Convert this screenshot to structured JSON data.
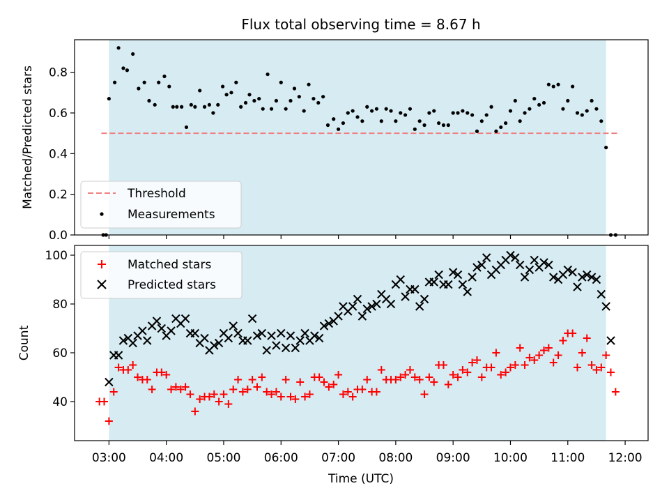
{
  "chart_data": [
    {
      "type": "scatter",
      "title": "Flux total observing time = 8.67 h",
      "xlabel": "",
      "ylabel": "Matched/Predicted stars",
      "xlim": [
        "02:24",
        "12:24"
      ],
      "ylim": [
        0,
        0.96
      ],
      "yticks": [
        0.0,
        0.2,
        0.4,
        0.6,
        0.8
      ],
      "ytick_labels": [
        "0.0",
        "0.2",
        "0.4",
        "0.6",
        "0.8"
      ],
      "observing_window": {
        "start": "03:00",
        "end": "11:40",
        "color": "#add8e6"
      },
      "threshold": {
        "name": "Threshold",
        "value": 0.5,
        "x_range": [
          "02:52",
          "11:52"
        ],
        "color": "#f08080",
        "style": "dashed"
      },
      "legend": {
        "placement": "lower-left",
        "entries": [
          "Threshold",
          "Measurements"
        ]
      },
      "series": [
        {
          "name": "Measurements",
          "marker": "dot",
          "color": "#000000",
          "x": [
            "02:54",
            "02:57",
            "03:00",
            "03:06",
            "03:10",
            "03:15",
            "03:19",
            "03:25",
            "03:31",
            "03:37",
            "03:42",
            "03:48",
            "03:52",
            "03:58",
            "04:03",
            "04:07",
            "04:11",
            "04:16",
            "04:21",
            "04:26",
            "04:30",
            "04:35",
            "04:40",
            "04:45",
            "04:49",
            "04:54",
            "04:59",
            "05:03",
            "05:08",
            "05:13",
            "05:18",
            "05:23",
            "05:27",
            "05:32",
            "05:37",
            "05:41",
            "05:46",
            "05:50",
            "05:55",
            "06:00",
            "06:05",
            "06:10",
            "06:14",
            "06:19",
            "06:24",
            "06:29",
            "06:34",
            "06:39",
            "06:44",
            "06:49",
            "06:55",
            "07:00",
            "07:05",
            "07:10",
            "07:15",
            "07:20",
            "07:25",
            "07:30",
            "07:35",
            "07:40",
            "07:45",
            "07:50",
            "07:55",
            "08:00",
            "08:05",
            "08:10",
            "08:15",
            "08:20",
            "08:25",
            "08:30",
            "08:35",
            "08:40",
            "08:45",
            "08:50",
            "08:55",
            "09:00",
            "09:05",
            "09:10",
            "09:15",
            "09:20",
            "09:25",
            "09:30",
            "09:35",
            "09:40",
            "09:45",
            "09:50",
            "09:55",
            "10:00",
            "10:05",
            "10:10",
            "10:15",
            "10:20",
            "10:25",
            "10:30",
            "10:35",
            "10:40",
            "10:45",
            "10:50",
            "10:55",
            "11:00",
            "11:05",
            "11:10",
            "11:15",
            "11:20",
            "11:25",
            "11:30",
            "11:35",
            "11:40",
            "11:45",
            "11:50"
          ],
          "y": [
            0.0,
            0.0,
            0.67,
            0.75,
            0.92,
            0.82,
            0.81,
            0.89,
            0.72,
            0.75,
            0.66,
            0.64,
            0.75,
            0.78,
            0.73,
            0.63,
            0.63,
            0.63,
            0.53,
            0.64,
            0.63,
            0.71,
            0.63,
            0.64,
            0.6,
            0.64,
            0.73,
            0.69,
            0.7,
            0.75,
            0.63,
            0.65,
            0.69,
            0.66,
            0.67,
            0.62,
            0.79,
            0.62,
            0.66,
            0.75,
            0.62,
            0.66,
            0.72,
            0.68,
            0.61,
            0.74,
            0.67,
            0.65,
            0.68,
            0.54,
            0.57,
            0.52,
            0.55,
            0.6,
            0.61,
            0.58,
            0.56,
            0.63,
            0.61,
            0.62,
            0.56,
            0.62,
            0.61,
            0.56,
            0.6,
            0.59,
            0.62,
            0.52,
            0.56,
            0.54,
            0.6,
            0.61,
            0.55,
            0.54,
            0.54,
            0.6,
            0.6,
            0.61,
            0.6,
            0.59,
            0.51,
            0.56,
            0.59,
            0.63,
            0.51,
            0.53,
            0.55,
            0.61,
            0.66,
            0.56,
            0.6,
            0.62,
            0.67,
            0.64,
            0.65,
            0.74,
            0.73,
            0.74,
            0.62,
            0.66,
            0.73,
            0.6,
            0.59,
            0.61,
            0.66,
            0.62,
            0.56,
            0.43,
            0.0,
            0.0
          ]
        }
      ]
    },
    {
      "type": "scatter",
      "title": "",
      "xlabel": "Time (UTC)",
      "ylabel": "Count",
      "xlim": [
        "02:24",
        "12:24"
      ],
      "ylim": [
        24,
        104
      ],
      "yticks": [
        40,
        60,
        80,
        100
      ],
      "ytick_labels": [
        "40",
        "60",
        "80",
        "100"
      ],
      "xticks": [
        "03:00",
        "04:00",
        "05:00",
        "06:00",
        "07:00",
        "08:00",
        "09:00",
        "10:00",
        "11:00",
        "12:00"
      ],
      "observing_window": {
        "start": "03:00",
        "end": "11:40",
        "color": "#add8e6"
      },
      "legend": {
        "placement": "upper-left",
        "entries": [
          "Matched stars",
          "Predicted stars"
        ]
      },
      "series": [
        {
          "name": "Matched stars",
          "marker": "plus",
          "color": "#ff0000",
          "x": [
            "02:50",
            "02:55",
            "03:00",
            "03:05",
            "03:10",
            "03:15",
            "03:20",
            "03:25",
            "03:30",
            "03:35",
            "03:40",
            "03:45",
            "03:50",
            "03:55",
            "04:00",
            "04:05",
            "04:10",
            "04:15",
            "04:20",
            "04:25",
            "04:30",
            "04:35",
            "04:40",
            "04:45",
            "04:50",
            "04:55",
            "05:00",
            "05:05",
            "05:10",
            "05:15",
            "05:20",
            "05:25",
            "05:30",
            "05:35",
            "05:40",
            "05:45",
            "05:50",
            "05:55",
            "06:00",
            "06:05",
            "06:10",
            "06:15",
            "06:20",
            "06:25",
            "06:30",
            "06:35",
            "06:40",
            "06:45",
            "06:50",
            "06:55",
            "07:00",
            "07:05",
            "07:10",
            "07:15",
            "07:20",
            "07:25",
            "07:30",
            "07:35",
            "07:40",
            "07:45",
            "07:50",
            "07:55",
            "08:00",
            "08:05",
            "08:10",
            "08:15",
            "08:20",
            "08:25",
            "08:30",
            "08:35",
            "08:40",
            "08:45",
            "08:50",
            "08:55",
            "09:00",
            "09:05",
            "09:10",
            "09:15",
            "09:20",
            "09:25",
            "09:30",
            "09:35",
            "09:40",
            "09:45",
            "09:50",
            "09:55",
            "10:00",
            "10:05",
            "10:10",
            "10:15",
            "10:20",
            "10:25",
            "10:30",
            "10:35",
            "10:40",
            "10:45",
            "10:50",
            "10:55",
            "11:00",
            "11:05",
            "11:10",
            "11:15",
            "11:20",
            "11:25",
            "11:30",
            "11:35",
            "11:40",
            "11:45",
            "11:50"
          ],
          "y": [
            40,
            40,
            32,
            44,
            54,
            53,
            53,
            55,
            50,
            49,
            49,
            45,
            52,
            52,
            51,
            45,
            46,
            45,
            46,
            43,
            36,
            41,
            42,
            42,
            43,
            40,
            43,
            39,
            45,
            49,
            44,
            45,
            49,
            46,
            50,
            44,
            43,
            44,
            42,
            49,
            42,
            41,
            48,
            42,
            43,
            50,
            50,
            48,
            46,
            47,
            51,
            43,
            44,
            42,
            45,
            45,
            49,
            44,
            44,
            53,
            49,
            49,
            49,
            50,
            51,
            53,
            50,
            49,
            43,
            50,
            48,
            55,
            55,
            47,
            51,
            50,
            53,
            52,
            56,
            57,
            50,
            54,
            54,
            60,
            51,
            52,
            54,
            55,
            62,
            55,
            58,
            57,
            59,
            61,
            62,
            56,
            59,
            65,
            68,
            68,
            54,
            60,
            66,
            55,
            53,
            54,
            59,
            52,
            44
          ]
        },
        {
          "name": "Predicted stars",
          "marker": "x",
          "color": "#000000",
          "x": [
            "03:00",
            "03:05",
            "03:10",
            "03:15",
            "03:20",
            "03:25",
            "03:30",
            "03:35",
            "03:40",
            "03:45",
            "03:50",
            "03:55",
            "04:00",
            "04:05",
            "04:10",
            "04:15",
            "04:20",
            "04:25",
            "04:30",
            "04:35",
            "04:40",
            "04:45",
            "04:50",
            "04:55",
            "05:00",
            "05:05",
            "05:10",
            "05:15",
            "05:20",
            "05:25",
            "05:30",
            "05:35",
            "05:40",
            "05:45",
            "05:50",
            "05:55",
            "06:00",
            "06:05",
            "06:10",
            "06:15",
            "06:20",
            "06:25",
            "06:30",
            "06:35",
            "06:40",
            "06:45",
            "06:50",
            "06:55",
            "07:00",
            "07:05",
            "07:10",
            "07:15",
            "07:20",
            "07:25",
            "07:30",
            "07:35",
            "07:40",
            "07:45",
            "07:50",
            "07:55",
            "08:00",
            "08:05",
            "08:10",
            "08:15",
            "08:20",
            "08:25",
            "08:30",
            "08:35",
            "08:40",
            "08:45",
            "08:50",
            "08:55",
            "09:00",
            "09:05",
            "09:10",
            "09:15",
            "09:20",
            "09:25",
            "09:30",
            "09:35",
            "09:40",
            "09:45",
            "09:50",
            "09:55",
            "10:00",
            "10:05",
            "10:10",
            "10:15",
            "10:20",
            "10:25",
            "10:30",
            "10:35",
            "10:40",
            "10:45",
            "10:50",
            "10:55",
            "11:00",
            "11:05",
            "11:10",
            "11:15",
            "11:20",
            "11:25",
            "11:30",
            "11:35",
            "11:40",
            "11:45"
          ],
          "y": [
            48,
            59,
            59,
            65,
            66,
            64,
            67,
            69,
            65,
            71,
            73,
            70,
            67,
            69,
            74,
            72,
            74,
            68,
            68,
            64,
            66,
            61,
            63,
            64,
            68,
            66,
            71,
            68,
            65,
            65,
            74,
            67,
            68,
            61,
            67,
            63,
            68,
            62,
            67,
            62,
            65,
            68,
            65,
            67,
            66,
            71,
            72,
            73,
            75,
            79,
            77,
            79,
            82,
            75,
            78,
            79,
            80,
            84,
            82,
            80,
            88,
            90,
            83,
            86,
            86,
            79,
            82,
            89,
            89,
            92,
            88,
            88,
            93,
            92,
            88,
            85,
            91,
            95,
            96,
            99,
            92,
            94,
            96,
            98,
            100,
            99,
            96,
            91,
            94,
            98,
            95,
            97,
            96,
            91,
            90,
            92,
            94,
            93,
            87,
            91,
            92,
            91,
            90,
            84,
            79,
            65
          ]
        }
      ]
    }
  ]
}
